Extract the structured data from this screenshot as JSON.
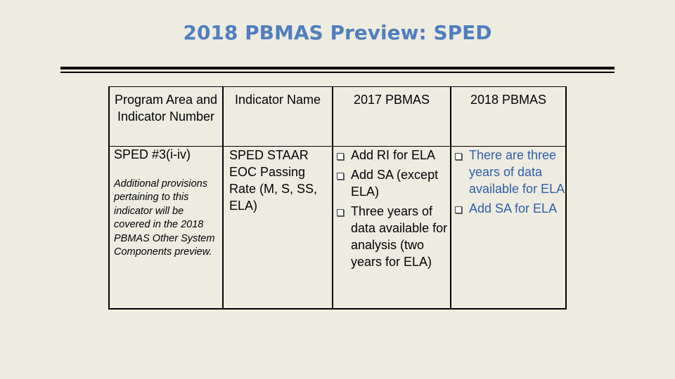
{
  "slide": {
    "title": "2018 PBMAS Preview: SPED"
  },
  "table": {
    "headers": [
      "Program Area and Indicator Number",
      "Indicator Name",
      "2017 PBMAS",
      "2018 PBMAS"
    ],
    "row": {
      "program_area": "SPED #3(i-iv)",
      "notes": "Additional provisions pertaining to this indicator will be covered in the 2018 PBMAS Other System Components preview.",
      "indicator_name": "SPED STAAR EOC Passing Rate (M, S, SS, ELA)",
      "pbmas_2017": [
        "Add RI for ELA",
        "Add SA (except ELA)",
        "Three years of data available for analysis (two years for ELA)"
      ],
      "pbmas_2018": [
        "There are three years of data available for ELA",
        "Add SA for ELA"
      ]
    },
    "colors": {
      "text": "#000000",
      "pbmas_2018_text": "#2f5fa8",
      "title": "#4f7fbf",
      "background": "#eeece1"
    }
  },
  "icons": {
    "bullet": "checkbox-square-icon"
  }
}
